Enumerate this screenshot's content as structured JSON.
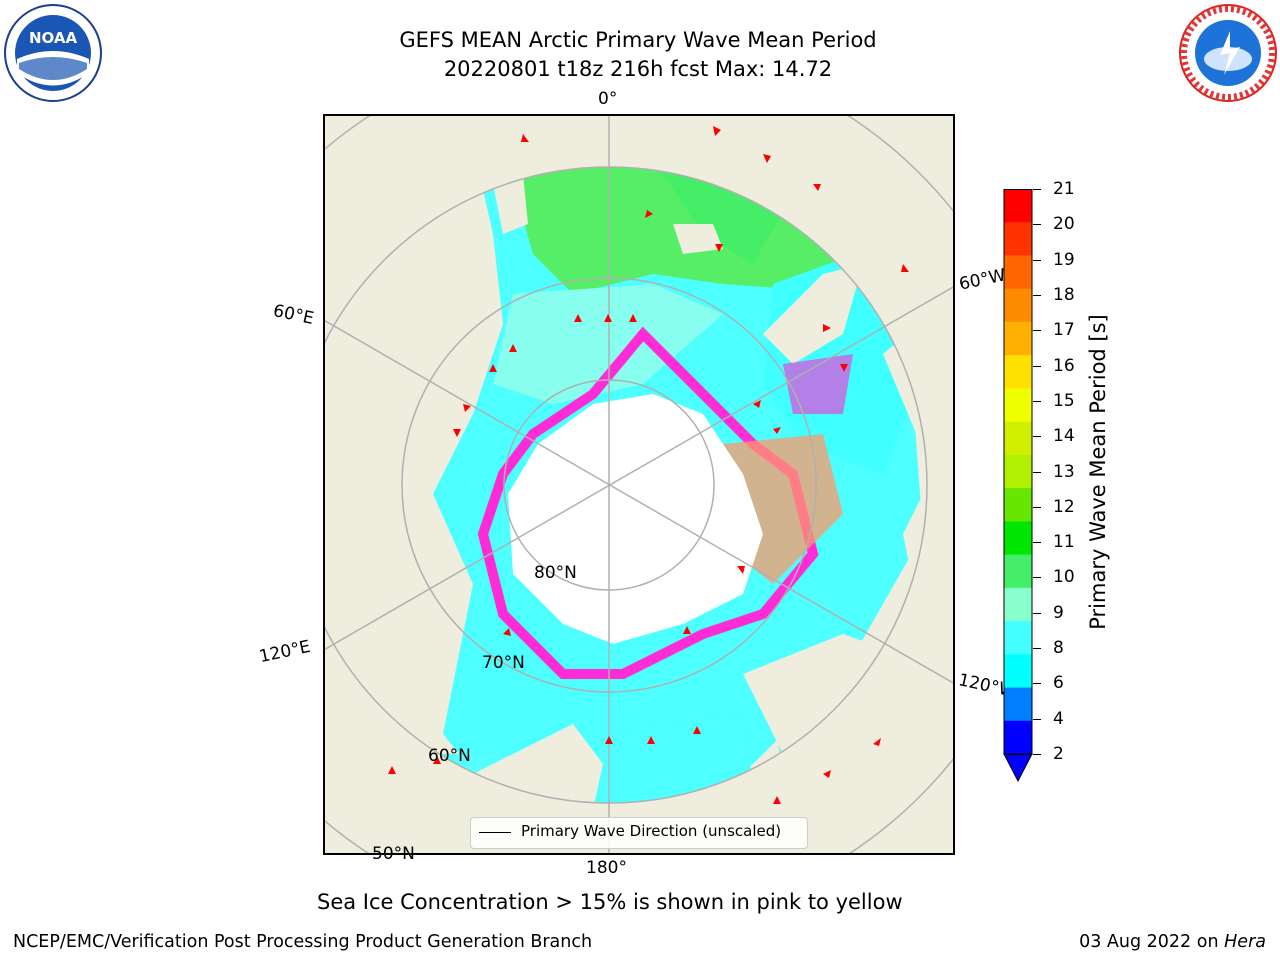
{
  "header": {
    "title_line1": "GEFS MEAN Arctic Primary Wave Mean Period",
    "title_line2": "20220801 t18z 216h fcst   Max: 14.72"
  },
  "logos": [
    {
      "name": "noaa-logo",
      "text": "NOAA"
    },
    {
      "name": "nws-logo",
      "text": "NATIONAL WEATHER SERVICE"
    }
  ],
  "map": {
    "longitude_labels": [
      "0°",
      "60°W",
      "60°E",
      "120°E",
      "120°W",
      "180°"
    ],
    "latitude_labels": [
      "80°N",
      "70°N",
      "60°N",
      "50°N"
    ],
    "land_color": "#efedde",
    "ice_colors": [
      "#ff2bd6",
      "#ff9a6a",
      "#ffd36a"
    ]
  },
  "colorbar": {
    "label": "Primary Wave Mean Period [s]",
    "ticks": [
      "21",
      "20",
      "19",
      "18",
      "17",
      "16",
      "15",
      "14",
      "13",
      "12",
      "11",
      "10",
      "9",
      "8",
      "6",
      "4",
      "2"
    ],
    "colors": [
      "#ff0000",
      "#ff3300",
      "#ff6600",
      "#ff8c00",
      "#ffb000",
      "#ffe000",
      "#f0ff00",
      "#d0f000",
      "#b0f000",
      "#66e600",
      "#00e600",
      "#44ee66",
      "#88ffcc",
      "#44ffff",
      "#00ffff",
      "#0080ff",
      "#0000ff"
    ],
    "extend_color": "#0000ff"
  },
  "legend": {
    "label": "Primary Wave Direction (unscaled)"
  },
  "footer": {
    "note": "Sea Ice Concentration > 15% is shown in pink to yellow",
    "left": "NCEP/EMC/Verification Post Processing Product Generation Branch",
    "date": "03 Aug 2022 on",
    "machine": "Hera"
  }
}
